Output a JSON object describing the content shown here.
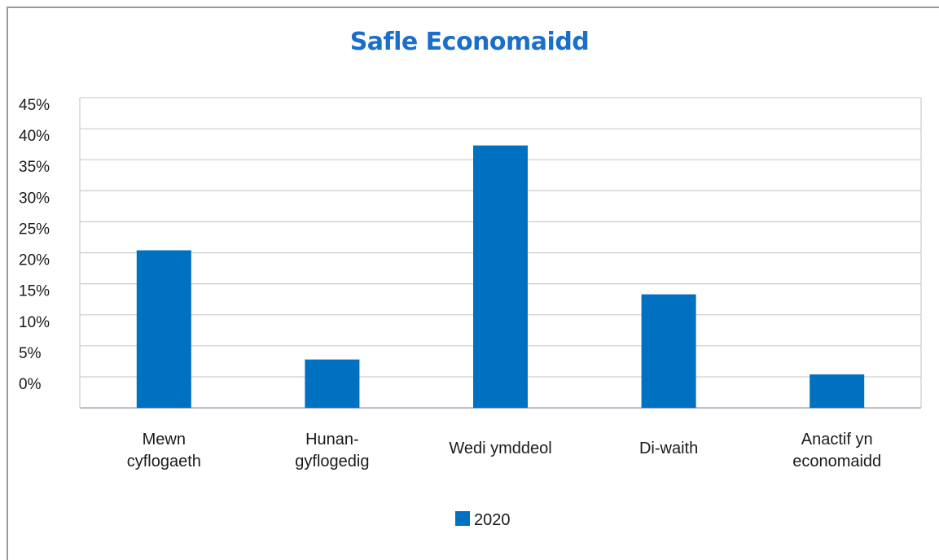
{
  "chart_data": {
    "type": "bar",
    "title": "Safle Economaidd",
    "categories": [
      [
        "Mewn",
        "cyflogaeth"
      ],
      [
        "Hunan-",
        "gyflogedig"
      ],
      [
        "Wedi ymddeol"
      ],
      [
        "Di-waith"
      ],
      [
        "Anactif yn",
        "economaidd"
      ]
    ],
    "series": [
      {
        "name": "2020",
        "values": [
          20.4,
          2.8,
          37.3,
          13.3,
          0.4
        ]
      }
    ],
    "ylim": [
      -5,
      45
    ],
    "yticks": [
      "45%",
      "40%",
      "35%",
      "30%",
      "25%",
      "20%",
      "15%",
      "10%",
      "5%",
      "0%"
    ],
    "grid": true,
    "legend": "bottom",
    "colors": {
      "bar": "#0070c0",
      "title": "#1a6fc9",
      "grid": "#d0d0d0",
      "axis": "#b8b8c8"
    }
  }
}
